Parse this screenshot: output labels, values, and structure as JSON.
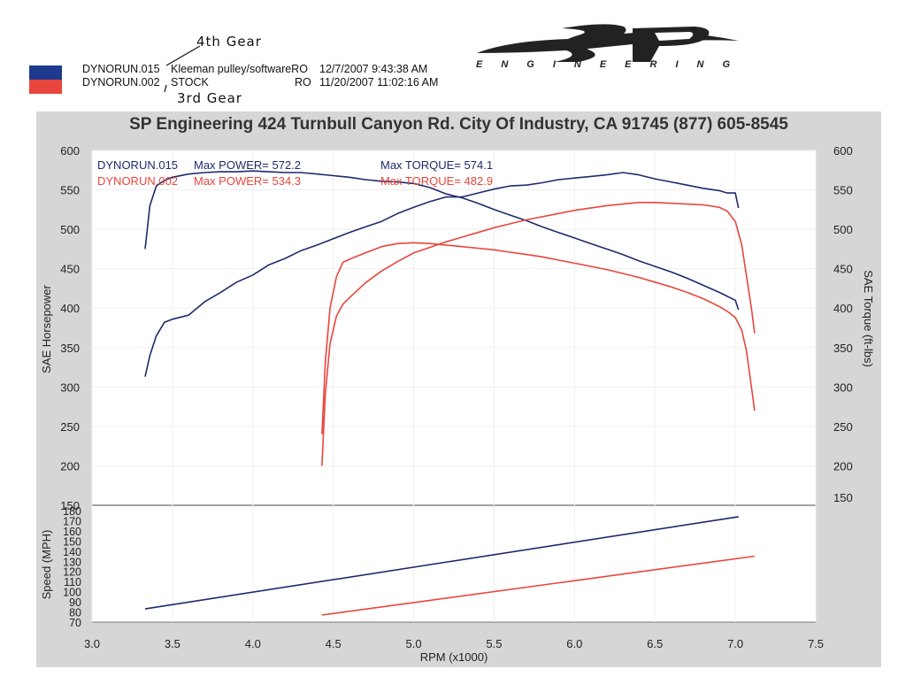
{
  "handwriting": {
    "gear_4th": "4th Gear",
    "gear_3rd": "3rd Gear"
  },
  "runs": [
    {
      "name": "DYNORUN.015",
      "desc": "Kleeman pulley/softwareRO",
      "date": "12/7/2007 9:43:38 AM",
      "color": "#1f2a6b",
      "swatch": "#1d3a8f"
    },
    {
      "name": "DYNORUN.002",
      "desc": "STOCK",
      "ro": "RO",
      "date": "11/20/2007 11:02:16 AM",
      "color": "#e8453c",
      "swatch": "#e8453c"
    }
  ],
  "logo": {
    "mark": "SP",
    "subtitle": "ENGINEERING"
  },
  "chart_data": {
    "type": "line",
    "title": "SP Engineering 424 Turnbull Canyon Rd. City Of Industry, CA 91745 (877) 605-8545",
    "xlabel": "RPM (x1000)",
    "ylabel_left": "SAE Horsepower",
    "ylabel_right": "SAE Torque (ft-lbs)",
    "ylabel_speed": "Speed (MPH)",
    "xlim": [
      3.0,
      7.5
    ],
    "ylim": [
      150,
      600
    ],
    "speed_ylim": [
      70,
      180
    ],
    "x_ticks": [
      "3.0",
      "3.5",
      "4.0",
      "4.5",
      "5.0",
      "5.5",
      "6.0",
      "6.5",
      "7.0",
      "7.5"
    ],
    "y_ticks_left": [
      "600",
      "550",
      "500",
      "450",
      "400",
      "350",
      "300",
      "250",
      "200",
      "150"
    ],
    "y_ticks_right": [
      "600",
      "550",
      "500",
      "450",
      "400",
      "350",
      "300",
      "250",
      "200",
      "150"
    ],
    "speed_ticks": [
      "70",
      "80",
      "90",
      "100",
      "110",
      "120",
      "130",
      "140",
      "150",
      "160",
      "170",
      "180"
    ],
    "legend": [
      {
        "run": "DYNORUN.015",
        "power": "Max POWER= 572.2",
        "torque": "Max TORQUE= 574.1",
        "color": "#1f2a6b"
      },
      {
        "run": "DYNORUN.002",
        "power": "Max POWER= 534.3",
        "torque": "Max TORQUE= 482.9",
        "color": "#e8453c"
      }
    ],
    "series": [
      {
        "name": "DYNORUN.015 Torque",
        "color": "#1f2a6b",
        "x": [
          3.33,
          3.36,
          3.4,
          3.45,
          3.5,
          3.6,
          3.7,
          3.8,
          3.9,
          4.0,
          4.1,
          4.2,
          4.3,
          4.4,
          4.5,
          4.6,
          4.7,
          4.8,
          4.9,
          5.0,
          5.1,
          5.2,
          5.3,
          5.4,
          5.5,
          5.6,
          5.7,
          5.8,
          5.9,
          6.0,
          6.1,
          6.2,
          6.3,
          6.4,
          6.5,
          6.6,
          6.7,
          6.8,
          6.9,
          7.0,
          7.02
        ],
        "y": [
          475,
          530,
          555,
          562,
          566,
          570,
          572,
          573,
          573,
          574,
          573,
          572,
          572,
          570,
          568,
          566,
          563,
          561,
          560,
          558,
          553,
          545,
          540,
          533,
          525,
          518,
          511,
          503,
          496,
          489,
          482,
          475,
          468,
          460,
          453,
          446,
          438,
          429,
          420,
          410,
          398
        ]
      },
      {
        "name": "DYNORUN.015 Power",
        "color": "#1f2a6b",
        "x": [
          3.33,
          3.36,
          3.4,
          3.45,
          3.5,
          3.6,
          3.7,
          3.8,
          3.9,
          4.0,
          4.1,
          4.2,
          4.3,
          4.4,
          4.5,
          4.6,
          4.7,
          4.8,
          4.9,
          5.0,
          5.1,
          5.2,
          5.3,
          5.4,
          5.5,
          5.6,
          5.7,
          5.8,
          5.9,
          6.0,
          6.1,
          6.2,
          6.3,
          6.4,
          6.5,
          6.6,
          6.7,
          6.8,
          6.9,
          6.95,
          7.0,
          7.02
        ],
        "y": [
          313,
          340,
          365,
          382,
          386,
          391,
          408,
          420,
          433,
          442,
          455,
          463,
          473,
          480,
          488,
          496,
          503,
          510,
          520,
          528,
          535,
          541,
          541,
          546,
          551,
          555,
          556,
          559,
          563,
          565,
          567,
          569,
          572,
          569,
          564,
          560,
          556,
          552,
          549,
          546,
          546,
          527
        ]
      },
      {
        "name": "DYNORUN.002 Torque",
        "color": "#e8453c",
        "x": [
          4.43,
          4.45,
          4.48,
          4.52,
          4.56,
          4.6,
          4.7,
          4.8,
          4.9,
          5.0,
          5.1,
          5.2,
          5.3,
          5.4,
          5.5,
          5.6,
          5.7,
          5.8,
          5.9,
          6.0,
          6.1,
          6.2,
          6.3,
          6.4,
          6.5,
          6.6,
          6.7,
          6.8,
          6.9,
          6.95,
          7.0,
          7.04,
          7.07,
          7.1,
          7.12
        ],
        "y": [
          240,
          330,
          400,
          440,
          458,
          462,
          470,
          478,
          482,
          483,
          482,
          480,
          478,
          476,
          474,
          471,
          468,
          465,
          461,
          457,
          453,
          449,
          444,
          439,
          433,
          427,
          420,
          412,
          402,
          396,
          388,
          372,
          345,
          300,
          270
        ]
      },
      {
        "name": "DYNORUN.002 Power",
        "color": "#e8453c",
        "x": [
          4.43,
          4.45,
          4.48,
          4.52,
          4.56,
          4.6,
          4.7,
          4.8,
          4.9,
          5.0,
          5.1,
          5.2,
          5.3,
          5.4,
          5.5,
          5.6,
          5.7,
          5.8,
          5.9,
          6.0,
          6.1,
          6.2,
          6.3,
          6.4,
          6.5,
          6.6,
          6.7,
          6.8,
          6.9,
          6.95,
          7.0,
          7.04,
          7.07,
          7.1,
          7.12
        ],
        "y": [
          200,
          290,
          355,
          390,
          405,
          413,
          432,
          447,
          459,
          470,
          477,
          484,
          490,
          496,
          502,
          507,
          512,
          516,
          520,
          524,
          527,
          530,
          532,
          534,
          534,
          533,
          532,
          531,
          528,
          523,
          510,
          480,
          440,
          400,
          368
        ]
      },
      {
        "name": "DYNORUN.015 Speed",
        "color": "#1f2a6b",
        "panel": "speed",
        "x": [
          3.33,
          7.02
        ],
        "y": [
          83,
          174
        ]
      },
      {
        "name": "DYNORUN.002 Speed",
        "color": "#e8453c",
        "panel": "speed",
        "x": [
          4.43,
          7.12
        ],
        "y": [
          77,
          135
        ]
      }
    ]
  }
}
